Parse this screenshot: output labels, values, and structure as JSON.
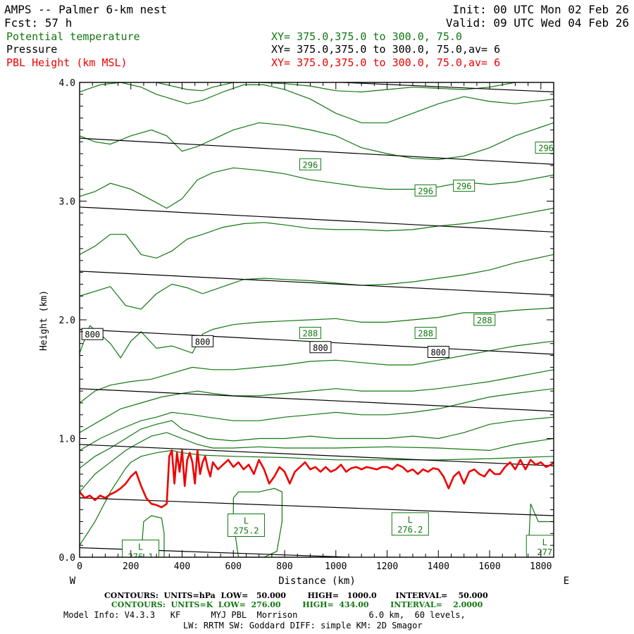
{
  "header": {
    "title": "AMPS -- Palmer 6-km nest",
    "fcst": "Fcst:    57 h",
    "init": "Init: 00 UTC Mon 02 Feb 26",
    "valid": "Valid: 09 UTC Wed 04 Feb 26",
    "var1": "Potential temperature",
    "var2": "Pressure",
    "var3": "PBL Height (km MSL)",
    "xy1": "XY= 375.0,375.0 to 300.0, 75.0",
    "xy2": "XY= 375.0,375.0 to 300.0, 75.0,av=  6",
    "xy3": "XY= 375.0,375.0 to 300.0, 75.0,av=  6"
  },
  "footer": {
    "contours1": "CONTOURS:  UNITS=hPa  LOW=   50.000        HIGH=   1000.0       INTERVAL=    50.000",
    "contours2": "CONTOURS:  UNITS=K  LOW=  276.00        HIGH=  434.00        INTERVAL=    2.0000",
    "model1": "Model Info: V4.3.3   KF      MYJ PBL  Morrison              6.0 km,  60 levels,",
    "model2": "LW: RRTM SW: Goddard DIFF: simple KM: 2D Smagor"
  },
  "colors": {
    "theta": "#117711",
    "pressure": "#000000",
    "pbl": "#ee0000"
  },
  "chart_data": {
    "type": "line",
    "xlabel": "Distance (km)",
    "ylabel": "Height (km)",
    "xlim": [
      0,
      1850
    ],
    "ylim": [
      0,
      4.0
    ],
    "xticks": [
      "0",
      "200",
      "400",
      "600",
      "800",
      "1000",
      "1200",
      "1400",
      "1600",
      "1800"
    ],
    "yticks": [
      "0.0",
      "1.0",
      "2.0",
      "3.0",
      "4.0"
    ],
    "west": "W",
    "east": "E",
    "pressure_lines": [
      {
        "y0": 0.08,
        "y1": -0.06
      },
      {
        "y0": 0.5,
        "y1": 0.35
      },
      {
        "y0": 0.95,
        "y1": 0.77
      },
      {
        "y0": 1.42,
        "y1": 1.23
      },
      {
        "y0": 1.92,
        "y1": 1.71
      },
      {
        "y0": 2.41,
        "y1": 2.21
      },
      {
        "y0": 2.95,
        "y1": 2.74
      },
      {
        "y0": 3.53,
        "y1": 3.31
      },
      {
        "y0": 4.1,
        "y1": 3.92
      }
    ],
    "pressure_labels": [
      {
        "text": "800",
        "x": 50,
        "y": 1.88
      },
      {
        "text": "800",
        "x": 480,
        "y": 1.82
      },
      {
        "text": "800",
        "x": 940,
        "y": 1.77
      },
      {
        "text": "800",
        "x": 1400,
        "y": 1.73
      }
    ],
    "theta_contours": [
      {
        "x": [
          0,
          60,
          120,
          180,
          200,
          240,
          300,
          360,
          400,
          480,
          600,
          800,
          1000,
          1200,
          1400,
          1600,
          1850
        ],
        "y": [
          0.1,
          0.3,
          0.55,
          0.75,
          0.8,
          0.85,
          0.88,
          0.9,
          0.88,
          0.86,
          0.85,
          0.84,
          0.82,
          0.82,
          0.82,
          0.83,
          0.85
        ]
      },
      {
        "x": [
          0,
          60,
          120,
          180,
          220,
          280,
          340,
          400,
          460,
          520,
          600,
          700,
          800,
          1000,
          1200,
          1400,
          1600,
          1700,
          1850
        ],
        "y": [
          0.55,
          0.7,
          0.8,
          0.9,
          0.95,
          1.02,
          1.05,
          1.0,
          0.95,
          0.92,
          0.92,
          0.93,
          0.92,
          0.92,
          0.93,
          0.92,
          0.9,
          0.95,
          1.0
        ]
      },
      {
        "x": [
          0,
          60,
          120,
          180,
          240,
          300,
          360,
          400,
          500,
          600,
          700,
          800,
          900,
          1000,
          1100,
          1200,
          1300,
          1400,
          1500,
          1600,
          1700,
          1850
        ],
        "y": [
          0.75,
          0.85,
          0.92,
          1.0,
          1.08,
          1.12,
          1.15,
          1.08,
          1.0,
          0.98,
          1.0,
          1.0,
          1.02,
          1.0,
          1.0,
          1.0,
          1.02,
          1.0,
          1.05,
          1.12,
          1.15,
          1.18
        ]
      },
      {
        "x": [
          0,
          80,
          160,
          240,
          300,
          360,
          440,
          500,
          600,
          700,
          800,
          900,
          1000,
          1100,
          1200,
          1300,
          1400,
          1500,
          1600,
          1700,
          1850
        ],
        "y": [
          0.9,
          1.0,
          1.08,
          1.15,
          1.18,
          1.22,
          1.2,
          1.18,
          1.15,
          1.15,
          1.18,
          1.2,
          1.22,
          1.2,
          1.2,
          1.22,
          1.25,
          1.3,
          1.35,
          1.38,
          1.42
        ]
      },
      {
        "x": [
          0,
          80,
          160,
          240,
          320,
          400,
          460,
          520,
          600,
          700,
          800,
          900,
          1000,
          1100,
          1200,
          1300,
          1400,
          1500,
          1600,
          1700,
          1850
        ],
        "y": [
          1.05,
          1.15,
          1.25,
          1.3,
          1.35,
          1.38,
          1.4,
          1.38,
          1.36,
          1.36,
          1.38,
          1.4,
          1.42,
          1.4,
          1.4,
          1.4,
          1.42,
          1.45,
          1.48,
          1.52,
          1.58
        ]
      },
      {
        "x": [
          0,
          60,
          120,
          200,
          280,
          360,
          440,
          520,
          600,
          700,
          800,
          900,
          1000,
          1100,
          1200,
          1300,
          1400,
          1500,
          1600,
          1700,
          1850
        ],
        "y": [
          1.3,
          1.4,
          1.45,
          1.48,
          1.5,
          1.55,
          1.6,
          1.58,
          1.58,
          1.6,
          1.62,
          1.65,
          1.66,
          1.64,
          1.62,
          1.62,
          1.66,
          1.7,
          1.74,
          1.78,
          1.82
        ]
      },
      {
        "x": [
          0,
          40,
          80,
          120,
          160,
          200,
          240,
          300,
          360,
          400,
          440,
          480,
          520,
          600,
          700,
          800,
          900,
          1000,
          1100,
          1200,
          1300,
          1400,
          1500,
          1600,
          1700,
          1850
        ],
        "y": [
          1.72,
          1.95,
          1.88,
          1.8,
          1.68,
          1.82,
          1.9,
          1.76,
          1.78,
          1.75,
          1.72,
          1.88,
          1.92,
          1.96,
          1.98,
          1.99,
          2.0,
          2.01,
          1.98,
          1.98,
          2.0,
          2.02,
          2.06,
          2.06,
          2.08,
          2.1
        ]
      },
      {
        "x": [
          0,
          60,
          120,
          180,
          240,
          300,
          360,
          420,
          480,
          560,
          640,
          720,
          800,
          900,
          1000,
          1100,
          1200,
          1300,
          1400,
          1500,
          1600,
          1700,
          1850
        ],
        "y": [
          2.2,
          2.24,
          2.28,
          2.12,
          2.09,
          2.22,
          2.3,
          2.27,
          2.22,
          2.28,
          2.34,
          2.35,
          2.34,
          2.33,
          2.31,
          2.29,
          2.3,
          2.32,
          2.35,
          2.38,
          2.42,
          2.48,
          2.55
        ]
      },
      {
        "x": [
          0,
          60,
          120,
          180,
          240,
          300,
          360,
          420,
          480,
          560,
          640,
          720,
          800,
          900,
          1000,
          1100,
          1200,
          1300,
          1400,
          1500,
          1600,
          1700,
          1850
        ],
        "y": [
          2.55,
          2.62,
          2.72,
          2.72,
          2.55,
          2.52,
          2.58,
          2.68,
          2.72,
          2.78,
          2.81,
          2.82,
          2.8,
          2.77,
          2.76,
          2.76,
          2.75,
          2.76,
          2.79,
          2.81,
          2.84,
          2.88,
          2.94
        ]
      },
      {
        "x": [
          0,
          60,
          120,
          200,
          280,
          340,
          400,
          460,
          520,
          600,
          700,
          800,
          900,
          1000,
          1100,
          1200,
          1300,
          1400,
          1500,
          1600,
          1700,
          1850
        ],
        "y": [
          3.04,
          3.08,
          3.15,
          3.1,
          3.01,
          2.94,
          3.02,
          3.18,
          3.24,
          3.28,
          3.26,
          3.23,
          3.18,
          3.15,
          3.12,
          3.1,
          3.1,
          3.12,
          3.16,
          3.14,
          3.16,
          3.22
        ]
      },
      {
        "x": [
          0,
          60,
          120,
          200,
          280,
          340,
          400,
          460,
          520,
          600,
          700,
          800,
          900,
          1000,
          1100,
          1200,
          1300,
          1400,
          1500,
          1600,
          1700,
          1850
        ],
        "y": [
          3.55,
          3.5,
          3.48,
          3.55,
          3.6,
          3.55,
          3.42,
          3.46,
          3.52,
          3.6,
          3.66,
          3.64,
          3.6,
          3.55,
          3.45,
          3.4,
          3.36,
          3.35,
          3.38,
          3.45,
          3.55,
          3.66
        ]
      },
      {
        "x": [
          0,
          80,
          160,
          240,
          300,
          360,
          420,
          480,
          560,
          640,
          720,
          800,
          900,
          1000,
          1100,
          1200,
          1300,
          1400,
          1500,
          1600,
          1700,
          1850
        ],
        "y": [
          3.92,
          3.98,
          4.0,
          3.96,
          3.9,
          3.86,
          3.82,
          3.85,
          3.92,
          3.98,
          3.98,
          3.94,
          3.86,
          3.74,
          3.66,
          3.66,
          3.74,
          3.82,
          3.88,
          3.84,
          3.82,
          3.86
        ]
      },
      {
        "x": [
          300,
          360,
          420,
          480,
          520,
          560,
          600,
          700,
          800,
          900,
          1000,
          1100,
          1200,
          1300,
          1400,
          1500,
          1600,
          1700
        ],
        "y": [
          4.0,
          3.97,
          3.94,
          3.93,
          3.96,
          3.98,
          4.0,
          4.0,
          3.99,
          3.97,
          3.93,
          3.92,
          3.94,
          3.96,
          3.95,
          3.94,
          3.96,
          4.0
        ]
      }
    ],
    "theta_labels": [
      {
        "text": "296",
        "x": 900,
        "y": 3.31
      },
      {
        "text": "296",
        "x": 1350,
        "y": 3.09
      },
      {
        "text": "296",
        "x": 1500,
        "y": 3.13
      },
      {
        "text": "296",
        "x": 1820,
        "y": 3.45
      },
      {
        "text": "288",
        "x": 900,
        "y": 1.89
      },
      {
        "text": "288",
        "x": 1350,
        "y": 1.89
      },
      {
        "text": "288",
        "x": 1580,
        "y": 2.0
      }
    ],
    "lows": [
      {
        "label": "L",
        "value": "275.2",
        "x": 650,
        "y": 0.27
      },
      {
        "label": "L",
        "value": "276.2",
        "x": 1290,
        "y": 0.28
      },
      {
        "label": "L",
        "value": "277",
        "x": 1815,
        "y": 0.09
      },
      {
        "label": "L",
        "value": "276.1",
        "x": 238,
        "y": 0.05
      }
    ],
    "low_cells": [
      {
        "x": [
          620,
          600,
          600,
          620,
          700,
          760,
          790,
          790,
          770,
          720,
          640,
          620
        ],
        "y": [
          0.0,
          0.3,
          0.5,
          0.55,
          0.55,
          0.58,
          0.55,
          0.3,
          0.05,
          0.0,
          0.0,
          0.0
        ]
      },
      {
        "x": [
          240,
          250,
          280,
          320,
          330,
          330
        ],
        "y": [
          0.0,
          0.3,
          0.35,
          0.33,
          0.2,
          0.0
        ]
      },
      {
        "x": [
          1750,
          1760,
          1790,
          1830,
          1850
        ],
        "y": [
          0.0,
          0.45,
          0.3,
          0.3,
          0.3
        ]
      }
    ],
    "pbl": {
      "x": [
        0,
        20,
        40,
        60,
        80,
        100,
        120,
        140,
        160,
        180,
        200,
        220,
        240,
        260,
        280,
        300,
        320,
        340,
        350,
        360,
        370,
        380,
        390,
        400,
        410,
        420,
        430,
        440,
        450,
        460,
        470,
        480,
        490,
        500,
        510,
        520,
        540,
        560,
        580,
        600,
        620,
        640,
        660,
        680,
        700,
        720,
        740,
        760,
        780,
        800,
        820,
        840,
        860,
        880,
        900,
        920,
        940,
        960,
        980,
        1000,
        1020,
        1040,
        1060,
        1080,
        1100,
        1120,
        1140,
        1160,
        1180,
        1200,
        1220,
        1240,
        1260,
        1280,
        1300,
        1320,
        1340,
        1360,
        1380,
        1400,
        1420,
        1440,
        1460,
        1480,
        1500,
        1520,
        1540,
        1560,
        1580,
        1600,
        1620,
        1640,
        1660,
        1680,
        1700,
        1720,
        1740,
        1760,
        1780,
        1800,
        1820,
        1840,
        1850
      ],
      "y": [
        0.55,
        0.5,
        0.52,
        0.48,
        0.52,
        0.5,
        0.53,
        0.55,
        0.58,
        0.62,
        0.68,
        0.72,
        0.6,
        0.5,
        0.45,
        0.44,
        0.42,
        0.45,
        0.85,
        0.9,
        0.62,
        0.88,
        0.72,
        0.9,
        0.6,
        0.82,
        0.88,
        0.8,
        0.62,
        0.9,
        0.7,
        0.8,
        0.85,
        0.75,
        0.68,
        0.8,
        0.74,
        0.78,
        0.82,
        0.76,
        0.8,
        0.74,
        0.78,
        0.7,
        0.82,
        0.74,
        0.62,
        0.68,
        0.76,
        0.72,
        0.62,
        0.72,
        0.76,
        0.8,
        0.74,
        0.76,
        0.72,
        0.76,
        0.72,
        0.74,
        0.78,
        0.72,
        0.75,
        0.76,
        0.74,
        0.76,
        0.75,
        0.74,
        0.76,
        0.76,
        0.74,
        0.78,
        0.76,
        0.72,
        0.74,
        0.7,
        0.74,
        0.72,
        0.75,
        0.74,
        0.68,
        0.58,
        0.68,
        0.72,
        0.62,
        0.72,
        0.74,
        0.7,
        0.68,
        0.74,
        0.7,
        0.7,
        0.76,
        0.8,
        0.74,
        0.82,
        0.74,
        0.82,
        0.78,
        0.8,
        0.76,
        0.78,
        0.8
      ]
    }
  }
}
